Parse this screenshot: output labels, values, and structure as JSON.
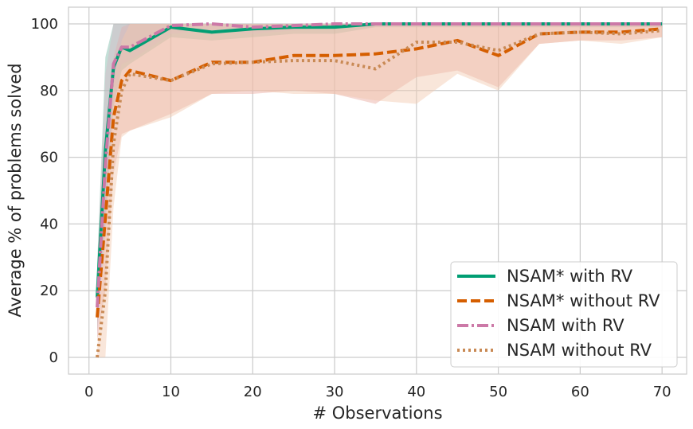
{
  "chart_data": {
    "type": "line",
    "title": "",
    "xlabel": "# Observations",
    "ylabel": "Average % of problems solved",
    "xlim": [
      -2.5,
      73
    ],
    "ylim": [
      -5,
      105
    ],
    "xticks": [
      0,
      10,
      20,
      30,
      40,
      50,
      60,
      70
    ],
    "yticks": [
      0,
      20,
      40,
      60,
      80,
      100
    ],
    "grid": true,
    "legend_position": "bottom-right",
    "x": [
      1,
      2,
      3,
      4,
      5,
      10,
      15,
      20,
      25,
      30,
      35,
      40,
      45,
      50,
      55,
      60,
      65,
      70
    ],
    "series": [
      {
        "name": "NSAM* with RV",
        "color": "#009e73",
        "dash": "solid",
        "values": [
          18,
          62,
          87,
          93,
          92,
          99,
          97.5,
          98.5,
          99,
          99,
          100,
          100,
          100,
          100,
          100,
          100,
          100,
          100
        ],
        "band_lower": [
          8,
          40,
          75,
          86,
          88,
          96,
          95,
          96,
          97,
          97,
          99,
          99,
          99,
          99,
          99,
          99,
          99,
          99
        ],
        "band_upper": [
          28,
          90,
          100,
          100,
          100,
          100,
          100,
          100,
          100,
          100,
          100,
          100,
          100,
          100,
          100,
          100,
          100,
          100
        ],
        "band_color": "#79b8a6"
      },
      {
        "name": "NSAM* without RV",
        "color": "#d55e00",
        "dash": "dashed",
        "values": [
          12,
          42,
          72,
          83,
          86,
          83,
          88.5,
          88.5,
          90.5,
          90.5,
          91,
          92.5,
          95,
          90.5,
          97,
          97.5,
          97.5,
          98.5
        ],
        "band_lower": [
          5,
          20,
          55,
          67,
          68,
          73,
          79,
          79,
          80,
          79,
          76,
          84,
          86,
          81,
          94,
          95,
          95,
          96
        ],
        "band_upper": [
          22,
          65,
          90,
          99,
          100,
          100,
          100,
          100,
          100,
          100,
          100,
          100,
          100,
          100,
          100,
          100,
          100,
          100
        ],
        "band_color": "#e8a99d"
      },
      {
        "name": "NSAM with RV",
        "color": "#cc79a7",
        "dash": "dashdot",
        "values": [
          15,
          58,
          88,
          93,
          93,
          99.5,
          100,
          99,
          99.5,
          100,
          100,
          100,
          100,
          100,
          100,
          100,
          100,
          100
        ],
        "band_lower": [
          6,
          38,
          76,
          88,
          89,
          97,
          98,
          97,
          98,
          99,
          99,
          99,
          99,
          99,
          99,
          99,
          99,
          99
        ],
        "band_upper": [
          26,
          85,
          100,
          100,
          100,
          100,
          100,
          100,
          100,
          100,
          100,
          100,
          100,
          100,
          100,
          100,
          100,
          100
        ],
        "band_color": "#d7b9c6"
      },
      {
        "name": "NSAM without RV",
        "color": "#c98a55",
        "dash": "dotted",
        "values": [
          0,
          20,
          64,
          80,
          85,
          83,
          88,
          88.5,
          89,
          89,
          86.5,
          94.5,
          94.5,
          92,
          97,
          97.5,
          97,
          98
        ],
        "band_lower": [
          0,
          0,
          45,
          66,
          68,
          72,
          79,
          80,
          79,
          79,
          77,
          76,
          85,
          80,
          94,
          95,
          94,
          96
        ],
        "band_upper": [
          2,
          40,
          82,
          95,
          100,
          100,
          100,
          100,
          100,
          100,
          100,
          100,
          100,
          100,
          100,
          100,
          100,
          100
        ],
        "band_color": "#f2c8ad"
      }
    ]
  }
}
